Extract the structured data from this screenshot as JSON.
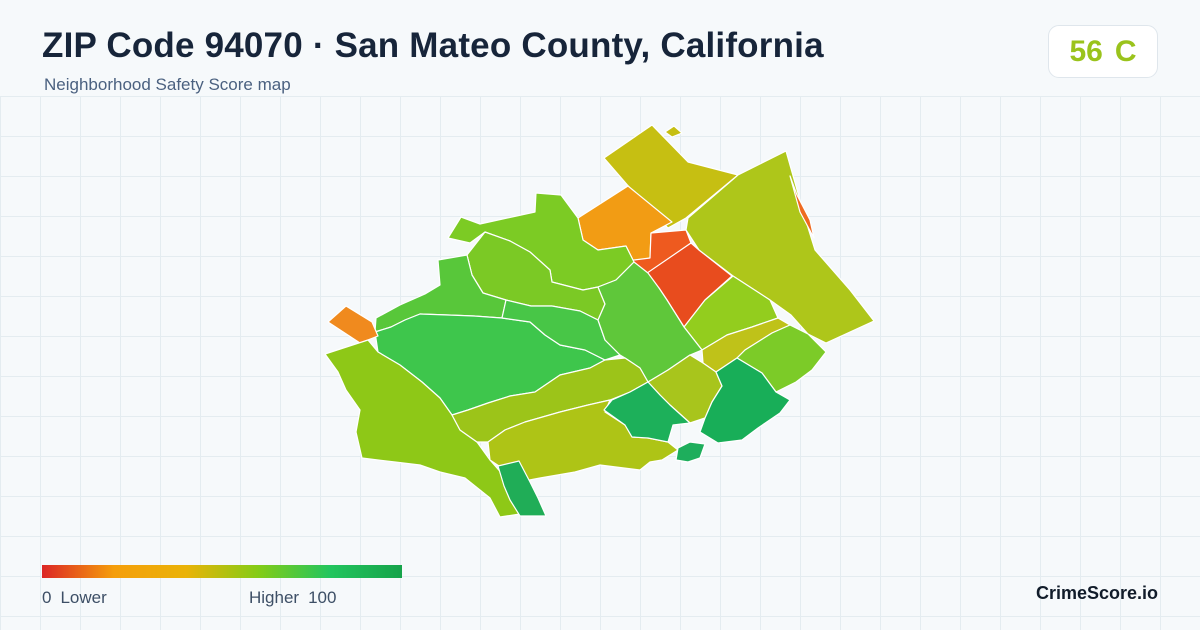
{
  "header": {
    "title": "ZIP Code 94070 · San Mateo County, California",
    "subtitle": "Neighborhood Safety Score map"
  },
  "score": {
    "value": "56",
    "grade": "C",
    "color": "#9ac31c"
  },
  "map": {
    "border_color": "#ffffff",
    "regions": [
      {
        "id": "north-block",
        "color": "#c6bf12"
      },
      {
        "id": "northwest-notch",
        "color": "#c6bf12"
      },
      {
        "id": "orange-north",
        "color": "#f29c14"
      },
      {
        "id": "red-upper",
        "color": "#ee5a1f"
      },
      {
        "id": "red-lower",
        "color": "#e84c1e"
      },
      {
        "id": "east-strip",
        "color": "#aec61a"
      },
      {
        "id": "east-edge",
        "color": "#ee6a20"
      },
      {
        "id": "mid-green-east",
        "color": "#93cd1e"
      },
      {
        "id": "yellow-band",
        "color": "#bfc219"
      },
      {
        "id": "lime-southeast",
        "color": "#7ccb28"
      },
      {
        "id": "nw-green",
        "color": "#7ccb24"
      },
      {
        "id": "north-center",
        "color": "#7bc925"
      },
      {
        "id": "west-green",
        "color": "#58c73a"
      },
      {
        "id": "central-green",
        "color": "#3ec64c"
      },
      {
        "id": "inner-green",
        "color": "#48c647"
      },
      {
        "id": "center-east-green",
        "color": "#5fc73a"
      },
      {
        "id": "orange-west",
        "color": "#f08a1e"
      },
      {
        "id": "southwest-large",
        "color": "#8ec817"
      },
      {
        "id": "south-band-upper",
        "color": "#9cc419"
      },
      {
        "id": "south-band-lower",
        "color": "#aec416"
      },
      {
        "id": "south-center",
        "color": "#a8c51c"
      },
      {
        "id": "green-dark-center",
        "color": "#1db05a"
      },
      {
        "id": "green-dark-east",
        "color": "#18ae58"
      },
      {
        "id": "green-small-south",
        "color": "#1eae5c"
      },
      {
        "id": "green-bottom",
        "color": "#20ad57"
      }
    ]
  },
  "legend": {
    "min_value": "0",
    "min_label": "Lower",
    "max_label": "Higher",
    "max_value": "100",
    "gradient_colors": [
      "#dc2626",
      "#f59e0b",
      "#eab308",
      "#84cc16",
      "#22c55e",
      "#16a34a"
    ]
  },
  "brand": "CrimeScore.io"
}
